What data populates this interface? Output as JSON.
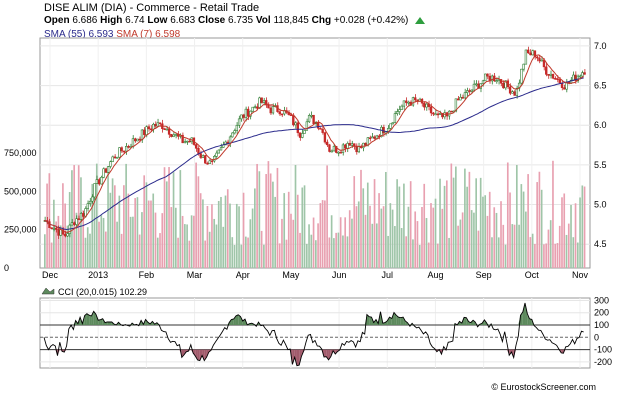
{
  "header": {
    "title": "DISE ALIM (DIA) - Commerce - Retail Trade",
    "open_label": "Open",
    "open": "6.686",
    "high_label": "High",
    "high": "6.74",
    "low_label": "Low",
    "low": "6.683",
    "close_label": "Close",
    "close": "6.735",
    "vol_label": "Vol",
    "vol": "118,845",
    "chg_label": "Chg",
    "chg": "+0.028 (+0.42%)",
    "sma55": "SMA (55) 6.593",
    "sma7": "SMA (7) 6.598"
  },
  "cci_label": "CCI (20,0.015) 102.29",
  "credit": "© EurostockScreener.com",
  "colors": {
    "up": "#2e7d32",
    "down": "#c62828",
    "vol_up": "#9fc5a8",
    "vol_down": "#e8a0b0",
    "sma55": "#2b2b8c",
    "sma7": "#c0392b",
    "cci_pos": "#5d8a5d",
    "cci_neg": "#a15a6b"
  },
  "chart_data": [
    {
      "type": "candlestick",
      "price_axis": [
        4.5,
        5.0,
        5.5,
        6.0,
        6.5,
        7.0
      ],
      "volume_axis": [
        "0",
        "250,000",
        "500,000",
        "750,000"
      ],
      "ylim": [
        4.2,
        7.1
      ],
      "volume_max": 900000,
      "months": [
        "Dec",
        "2013",
        "Feb",
        "Mar",
        "Apr",
        "May",
        "Jun",
        "Jul",
        "Aug",
        "Sep",
        "Oct",
        "Nov"
      ],
      "weekly_close": [
        4.8,
        4.7,
        4.6,
        4.8,
        4.9,
        5.2,
        5.4,
        5.6,
        5.7,
        5.8,
        5.9,
        6.0,
        6.0,
        5.9,
        5.8,
        5.8,
        5.6,
        5.5,
        5.7,
        5.9,
        6.1,
        6.2,
        6.3,
        6.2,
        6.2,
        6.1,
        5.9,
        6.1,
        6.0,
        5.7,
        5.7,
        5.8,
        5.7,
        5.8,
        5.9,
        6.0,
        6.2,
        6.3,
        6.3,
        6.2,
        6.1,
        6.1,
        6.3,
        6.4,
        6.5,
        6.6,
        6.6,
        6.5,
        6.4,
        6.9,
        6.9,
        6.7,
        6.6,
        6.5,
        6.6,
        6.7
      ]
    },
    {
      "type": "line",
      "name": "CCI (20,0.015)",
      "yaxis": [
        -200,
        -100,
        0,
        100,
        200,
        300
      ],
      "ylim": [
        -250,
        320
      ],
      "last_value": 102.29
    }
  ]
}
